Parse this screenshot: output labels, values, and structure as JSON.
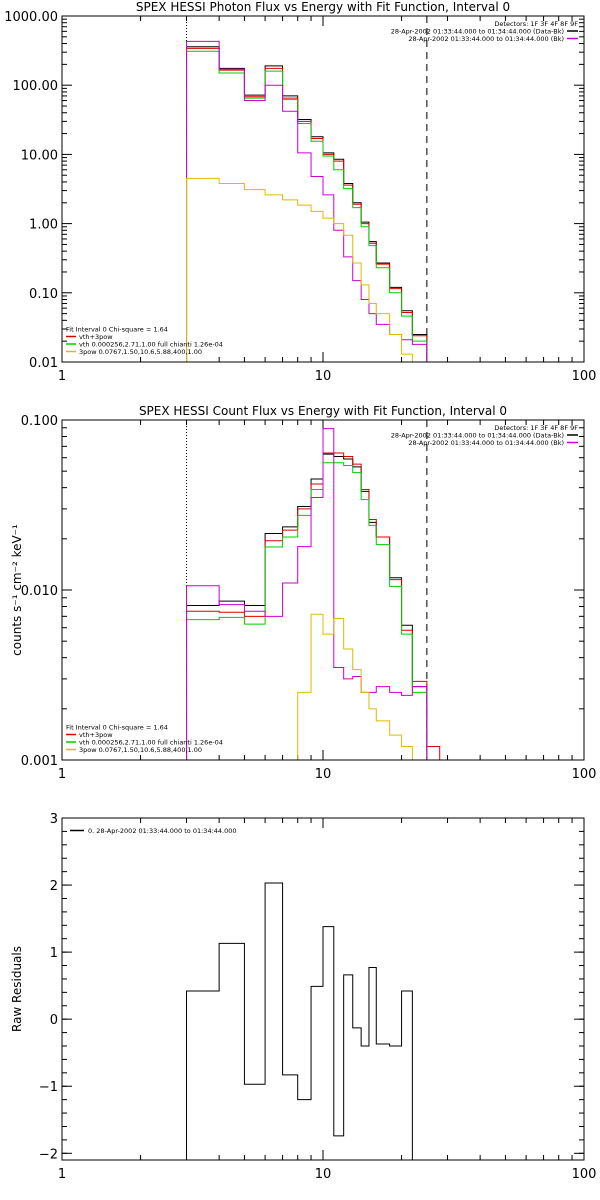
{
  "chart_data": [
    {
      "type": "line",
      "title": "SPEX HESSI Photon Flux vs Energy with Fit Function, Interval 0",
      "xlabel": "",
      "ylabel": "",
      "xscale": "log",
      "yscale": "log",
      "xlim": [
        1,
        100
      ],
      "ylim": [
        0.01,
        1000
      ],
      "xticks": [
        {
          "v": 1,
          "label": "1"
        },
        {
          "v": 10,
          "label": "10"
        },
        {
          "v": 100,
          "label": "100"
        }
      ],
      "yticks": [
        {
          "v": 0.01,
          "label": "0.01"
        },
        {
          "v": 0.1,
          "label": "0.10"
        },
        {
          "v": 1,
          "label": "1.00"
        },
        {
          "v": 10,
          "label": "10.00"
        },
        {
          "v": 100,
          "label": "100.00"
        },
        {
          "v": 1000,
          "label": "1000.00"
        }
      ],
      "vlines": [
        {
          "x": 3,
          "style": "dotted",
          "color": "#000000"
        },
        {
          "x": 25,
          "style": "dashed",
          "color": "#000000"
        }
      ],
      "edges": [
        3,
        4,
        5,
        6,
        7,
        8,
        9,
        10,
        11,
        12,
        13,
        14,
        15,
        16,
        18,
        20,
        22,
        25
      ],
      "series": [
        {
          "color": "#000000",
          "values": [
            360,
            175,
            72,
            190,
            70,
            32,
            18,
            10.5,
            8.5,
            3.8,
            2.0,
            1.05,
            0.55,
            0.27,
            0.12,
            0.055,
            0.025
          ]
        },
        {
          "color": "#dd0000",
          "values": [
            340,
            165,
            68,
            175,
            65,
            30,
            17,
            10,
            8,
            3.6,
            1.9,
            1.0,
            0.52,
            0.26,
            0.115,
            0.052,
            0.024
          ]
        },
        {
          "color": "#00cc00",
          "values": [
            310,
            150,
            65,
            160,
            62,
            28,
            15.5,
            9.5,
            6.0,
            3.2,
            1.7,
            0.9,
            0.48,
            0.23,
            0.1,
            0.046,
            0.02
          ]
        },
        {
          "color": "#cc00cc",
          "values": [
            430,
            170,
            60,
            100,
            42,
            10.5,
            4.8,
            2.6,
            0.8,
            0.33,
            0.15,
            0.08,
            0.05,
            0.035,
            0.025,
            0.021,
            0.018
          ]
        },
        {
          "color": "#ddbb00",
          "values": [
            4.5,
            3.8,
            3.1,
            2.6,
            2.2,
            1.85,
            1.5,
            1.2,
            1.0,
            0.68,
            0.27,
            0.13,
            0.07,
            0.05,
            0.025,
            0.013,
            0.009
          ]
        }
      ],
      "legend_top": {
        "placement": "top-right",
        "lines": [
          {
            "text": "Detectors: 1F 3F 4F 8F 9F",
            "color": ""
          },
          {
            "text": "28-Apr-2002 01:33:44.000 to 01:34:44.000 (Data-Bk)",
            "color": "#000000"
          },
          {
            "text": "28-Apr-2002 01:33:44.000 to 01:34:44.000 (Bk)",
            "color": "#cc00cc"
          }
        ]
      },
      "legend_bottom": {
        "placement": "bottom-left",
        "lines": [
          {
            "text": "Fit Interval 0   Chi-square = 1.64",
            "color": ""
          },
          {
            "text": "vth+3pow",
            "color": "#dd0000"
          },
          {
            "text": "vth 0.000256,2.71,1.00   full chianti 1.26e-04",
            "color": "#00cc00"
          },
          {
            "text": "3pow 0.0767,1.50,10.6,5.88,400,1.00",
            "color": "#ddbb00"
          }
        ]
      }
    },
    {
      "type": "line",
      "title": "SPEX HESSI Count Flux vs Energy with Fit Function, Interval 0",
      "xlabel": "",
      "ylabel": "counts s⁻¹ cm⁻² keV⁻¹",
      "xscale": "log",
      "yscale": "log",
      "xlim": [
        1,
        100
      ],
      "ylim": [
        0.001,
        0.1
      ],
      "xticks": [
        {
          "v": 1,
          "label": "1"
        },
        {
          "v": 10,
          "label": "10"
        },
        {
          "v": 100,
          "label": "100"
        }
      ],
      "yticks": [
        {
          "v": 0.001,
          "label": "0.001"
        },
        {
          "v": 0.01,
          "label": "0.010"
        },
        {
          "v": 0.1,
          "label": "0.100"
        }
      ],
      "vlines": [
        {
          "x": 3,
          "style": "dotted",
          "color": "#000000"
        },
        {
          "x": 25,
          "style": "dashed",
          "color": "#000000"
        }
      ],
      "edges": [
        3,
        4,
        5,
        6,
        7,
        8,
        9,
        10,
        11,
        12,
        13,
        14,
        15,
        16,
        18,
        20,
        22,
        25,
        28
      ],
      "series": [
        {
          "color": "#000000",
          "values": [
            0.0081,
            0.0086,
            0.0081,
            0.0215,
            0.0235,
            0.031,
            0.045,
            0.063,
            0.061,
            0.059,
            0.053,
            0.038,
            0.025,
            0.0205,
            0.0118,
            0.0062,
            0.0027,
            null
          ]
        },
        {
          "color": "#dd0000",
          "values": [
            0.0075,
            0.0074,
            0.007,
            0.0195,
            0.0225,
            0.03,
            0.042,
            0.064,
            0.064,
            0.061,
            0.055,
            0.039,
            0.026,
            0.0205,
            0.0115,
            0.0058,
            0.0029,
            0.0012
          ]
        },
        {
          "color": "#00cc00",
          "values": [
            0.0067,
            0.0069,
            0.0063,
            0.0179,
            0.0205,
            0.0275,
            0.039,
            0.056,
            0.056,
            0.054,
            0.049,
            0.034,
            0.024,
            0.0185,
            0.0105,
            0.0055,
            0.0025,
            null
          ]
        },
        {
          "color": "#cc00cc",
          "values": [
            0.0106,
            0.0082,
            0.0075,
            0.007,
            0.011,
            0.018,
            0.035,
            0.089,
            0.0035,
            0.003,
            0.0031,
            0.0025,
            0.0025,
            0.0027,
            0.0025,
            0.0024,
            0.0027,
            null
          ]
        },
        {
          "color": "#ddbb00",
          "values": [
            null,
            null,
            null,
            null,
            null,
            0.0025,
            0.0072,
            0.0055,
            0.0068,
            0.0045,
            0.0034,
            0.0025,
            0.002,
            0.0017,
            0.0014,
            0.0012,
            0.001,
            null
          ]
        }
      ],
      "legend_top": {
        "placement": "top-right",
        "lines": [
          {
            "text": "Detectors: 1F 3F 4F 8F 9F",
            "color": ""
          },
          {
            "text": "28-Apr-2002 01:33:44.000 to 01:34:44.000 (Data-Bk)",
            "color": "#000000"
          },
          {
            "text": "28-Apr-2002 01:33:44.000 to 01:34:44.000 (Bk)",
            "color": "#cc00cc"
          }
        ]
      },
      "legend_bottom": {
        "placement": "bottom-left",
        "lines": [
          {
            "text": "Fit Interval 0   Chi-square = 1.64",
            "color": ""
          },
          {
            "text": "vth+3pow",
            "color": "#dd0000"
          },
          {
            "text": "vth 0.000256,2.71,1.00   full chianti 1.26e-04",
            "color": "#00cc00"
          },
          {
            "text": "3pow 0.0767,1.50,10.6,5.88,400,1.00",
            "color": "#ddbb00"
          }
        ]
      }
    },
    {
      "type": "line",
      "title": "",
      "xlabel": "",
      "ylabel": "Raw Residuals",
      "xscale": "log",
      "yscale": "linear",
      "xlim": [
        1,
        100
      ],
      "ylim": [
        -2.1,
        3
      ],
      "xticks": [
        {
          "v": 1,
          "label": "1"
        },
        {
          "v": 10,
          "label": "10"
        },
        {
          "v": 100,
          "label": "100"
        }
      ],
      "yticks": [
        {
          "v": -2,
          "label": "−2"
        },
        {
          "v": -1,
          "label": "−1"
        },
        {
          "v": 0,
          "label": "0"
        },
        {
          "v": 1,
          "label": "1"
        },
        {
          "v": 2,
          "label": "2"
        },
        {
          "v": 3,
          "label": "3"
        }
      ],
      "vlines": [],
      "edges": [
        3,
        4,
        5,
        6,
        7,
        8,
        9,
        10,
        11,
        12,
        13,
        14,
        15,
        16,
        18,
        20,
        22,
        25
      ],
      "dropToFloor": true,
      "series": [
        {
          "color": "#000000",
          "values": [
            0.42,
            1.13,
            -0.97,
            2.03,
            -0.83,
            -1.2,
            0.49,
            1.38,
            -1.74,
            0.66,
            -0.13,
            -0.4,
            0.77,
            -0.37,
            -0.4,
            0.42,
            null
          ]
        }
      ],
      "legend_top": {
        "placement": "top-left",
        "lines": [
          {
            "text": "0. 28-Apr-2002 01:33:44.000 to 01:34:44.000",
            "color": "#000000"
          }
        ]
      },
      "legend_bottom": {
        "placement": "",
        "lines": []
      }
    }
  ]
}
